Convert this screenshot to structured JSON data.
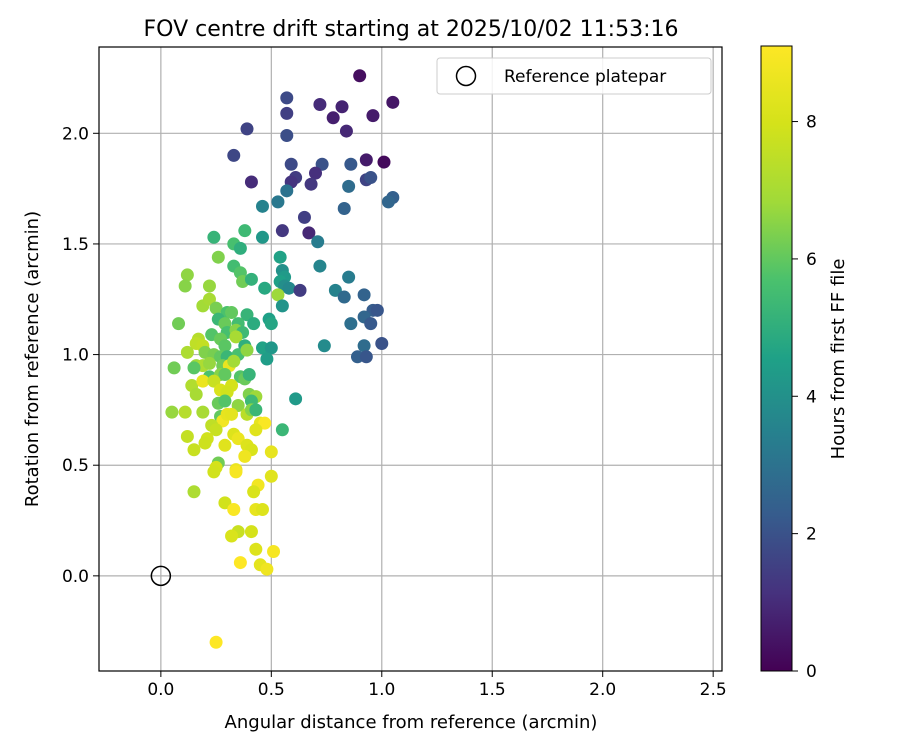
{
  "chart_data": {
    "type": "scatter",
    "title": "FOV centre drift starting at 2025/10/02 11:53:16",
    "xlabel": "Angular distance from reference (arcmin)",
    "ylabel": "Rotation from reference (arcmin)",
    "xlim": [
      -0.28,
      2.54
    ],
    "ylim": [
      -0.43,
      2.39
    ],
    "xticks": [
      0.0,
      0.5,
      1.0,
      1.5,
      2.0,
      2.5
    ],
    "yticks": [
      0.0,
      0.5,
      1.0,
      1.5,
      2.0
    ],
    "xtick_labels": [
      "0.0",
      "0.5",
      "1.0",
      "1.5",
      "2.0",
      "2.5"
    ],
    "ytick_labels": [
      "0.0",
      "0.5",
      "1.0",
      "1.5",
      "2.0"
    ],
    "grid": true,
    "colormap": "viridis",
    "colorbar": {
      "label": "Hours from first FF file",
      "range": [
        0,
        9.1
      ],
      "ticks": [
        0,
        2,
        4,
        6,
        8
      ],
      "tick_labels": [
        "0",
        "2",
        "4",
        "6",
        "8"
      ]
    },
    "legend": {
      "position": "top-right",
      "entries": [
        "Reference platepar"
      ]
    },
    "reference_point": {
      "x": 0.0,
      "y": 0.0,
      "marker": "open-circle",
      "color": "#000000"
    },
    "points": [
      [
        0.9,
        2.26,
        0.3
      ],
      [
        1.05,
        2.14,
        0.5
      ],
      [
        0.57,
        2.16,
        1.8
      ],
      [
        0.72,
        2.13,
        1.0
      ],
      [
        0.82,
        2.12,
        0.8
      ],
      [
        0.57,
        2.09,
        1.5
      ],
      [
        0.78,
        2.07,
        0.7
      ],
      [
        0.96,
        2.08,
        0.6
      ],
      [
        0.39,
        2.02,
        1.6
      ],
      [
        0.57,
        1.99,
        1.9
      ],
      [
        0.84,
        2.01,
        0.9
      ],
      [
        0.33,
        1.9,
        1.7
      ],
      [
        0.59,
        1.86,
        1.8
      ],
      [
        0.73,
        1.86,
        2.0
      ],
      [
        0.86,
        1.86,
        2.2
      ],
      [
        0.93,
        1.88,
        0.6
      ],
      [
        1.01,
        1.87,
        0.2
      ],
      [
        0.7,
        1.82,
        1.1
      ],
      [
        0.61,
        1.8,
        1.4
      ],
      [
        0.59,
        1.78,
        1.2
      ],
      [
        0.41,
        1.78,
        1.0
      ],
      [
        0.68,
        1.77,
        1.3
      ],
      [
        0.93,
        1.79,
        1.6
      ],
      [
        0.95,
        1.8,
        2.0
      ],
      [
        0.57,
        1.74,
        3.0
      ],
      [
        0.85,
        1.76,
        2.8
      ],
      [
        1.05,
        1.71,
        2.4
      ],
      [
        1.03,
        1.69,
        2.6
      ],
      [
        0.46,
        1.67,
        3.5
      ],
      [
        0.53,
        1.69,
        3.2
      ],
      [
        0.83,
        1.66,
        2.5
      ],
      [
        0.65,
        1.62,
        1.5
      ],
      [
        0.55,
        1.56,
        1.3
      ],
      [
        0.67,
        1.55,
        0.9
      ],
      [
        0.71,
        1.51,
        3.3
      ],
      [
        0.24,
        1.53,
        5.2
      ],
      [
        0.38,
        1.56,
        5.4
      ],
      [
        0.46,
        1.53,
        4.2
      ],
      [
        0.33,
        1.5,
        5.6
      ],
      [
        0.36,
        1.48,
        5.0
      ],
      [
        0.26,
        1.44,
        6.4
      ],
      [
        0.54,
        1.44,
        4.6
      ],
      [
        0.72,
        1.4,
        3.6
      ],
      [
        0.33,
        1.4,
        5.5
      ],
      [
        0.36,
        1.37,
        5.8
      ],
      [
        0.55,
        1.38,
        4.0
      ],
      [
        0.56,
        1.35,
        4.3
      ],
      [
        0.54,
        1.33,
        4.5
      ],
      [
        0.12,
        1.36,
        6.6
      ],
      [
        0.37,
        1.33,
        6.2
      ],
      [
        0.41,
        1.34,
        5.1
      ],
      [
        0.56,
        1.31,
        3.9
      ],
      [
        0.58,
        1.3,
        3.7
      ],
      [
        0.63,
        1.29,
        1.4
      ],
      [
        0.79,
        1.29,
        3.5
      ],
      [
        0.85,
        1.35,
        3.3
      ],
      [
        0.11,
        1.31,
        6.5
      ],
      [
        0.22,
        1.31,
        6.7
      ],
      [
        0.47,
        1.3,
        4.8
      ],
      [
        0.53,
        1.27,
        6.8
      ],
      [
        0.83,
        1.26,
        2.7
      ],
      [
        0.92,
        1.27,
        2.5
      ],
      [
        0.19,
        1.22,
        6.9
      ],
      [
        0.22,
        1.25,
        7.0
      ],
      [
        0.25,
        1.21,
        6.3
      ],
      [
        0.3,
        1.19,
        5.7
      ],
      [
        0.32,
        1.19,
        6.0
      ],
      [
        0.39,
        1.18,
        5.2
      ],
      [
        0.49,
        1.16,
        4.5
      ],
      [
        0.55,
        1.22,
        4.1
      ],
      [
        0.96,
        1.2,
        2.3
      ],
      [
        0.98,
        1.2,
        2.1
      ],
      [
        0.26,
        1.16,
        5.3
      ],
      [
        0.29,
        1.14,
        6.1
      ],
      [
        0.35,
        1.14,
        5.5
      ],
      [
        0.42,
        1.14,
        4.9
      ],
      [
        0.5,
        1.14,
        4.7
      ],
      [
        0.08,
        1.14,
        6.2
      ],
      [
        0.86,
        1.14,
        2.9
      ],
      [
        0.92,
        1.17,
        2.6
      ],
      [
        0.95,
        1.14,
        2.2
      ],
      [
        0.3,
        1.1,
        5.6
      ],
      [
        0.34,
        1.11,
        6.5
      ],
      [
        0.37,
        1.1,
        5.4
      ],
      [
        0.23,
        1.09,
        5.8
      ],
      [
        0.27,
        1.07,
        6.1
      ],
      [
        0.34,
        1.08,
        7.0
      ],
      [
        0.17,
        1.07,
        7.3
      ],
      [
        0.16,
        1.05,
        7.5
      ],
      [
        0.19,
        1.04,
        7.6
      ],
      [
        0.29,
        1.04,
        5.9
      ],
      [
        0.38,
        1.04,
        5.0
      ],
      [
        0.46,
        1.03,
        4.6
      ],
      [
        0.5,
        1.03,
        4.2
      ],
      [
        0.74,
        1.04,
        3.8
      ],
      [
        0.92,
        1.04,
        2.8
      ],
      [
        1.0,
        1.05,
        2.0
      ],
      [
        0.12,
        1.01,
        7.1
      ],
      [
        0.2,
        1.01,
        6.4
      ],
      [
        0.24,
        1.0,
        6.3
      ],
      [
        0.27,
        0.99,
        6.0
      ],
      [
        0.3,
        0.99,
        5.3
      ],
      [
        0.35,
        1.0,
        5.6
      ],
      [
        0.39,
        1.02,
        6.6
      ],
      [
        0.48,
        0.98,
        4.4
      ],
      [
        0.89,
        0.99,
        2.4
      ],
      [
        0.93,
        0.99,
        2.1
      ],
      [
        0.16,
        0.95,
        6.8
      ],
      [
        0.19,
        0.95,
        7.1
      ],
      [
        0.22,
        0.96,
        6.7
      ],
      [
        0.28,
        0.95,
        6.2
      ],
      [
        0.31,
        0.95,
        8.6
      ],
      [
        0.33,
        0.97,
        6.9
      ],
      [
        0.06,
        0.94,
        6.2
      ],
      [
        0.15,
        0.94,
        5.9
      ],
      [
        0.22,
        0.9,
        5.7
      ],
      [
        0.27,
        0.91,
        6.5
      ],
      [
        0.29,
        0.91,
        6.0
      ],
      [
        0.36,
        0.9,
        5.8
      ],
      [
        0.38,
        0.89,
        6.1
      ],
      [
        0.4,
        0.91,
        5.2
      ],
      [
        0.14,
        0.86,
        7.2
      ],
      [
        0.19,
        0.88,
        8.6
      ],
      [
        0.24,
        0.88,
        7.7
      ],
      [
        0.32,
        0.86,
        8.0
      ],
      [
        0.27,
        0.84,
        8.1
      ],
      [
        0.16,
        0.82,
        7.0
      ],
      [
        0.3,
        0.83,
        7.9
      ],
      [
        0.4,
        0.82,
        6.4
      ],
      [
        0.43,
        0.81,
        6.8
      ],
      [
        0.41,
        0.79,
        5.4
      ],
      [
        0.61,
        0.8,
        4.3
      ],
      [
        0.26,
        0.78,
        6.1
      ],
      [
        0.29,
        0.79,
        5.8
      ],
      [
        0.35,
        0.77,
        6.6
      ],
      [
        0.05,
        0.74,
        6.7
      ],
      [
        0.11,
        0.74,
        7.3
      ],
      [
        0.19,
        0.74,
        7.0
      ],
      [
        0.27,
        0.72,
        6.0
      ],
      [
        0.28,
        0.7,
        8.8
      ],
      [
        0.3,
        0.73,
        8.5
      ],
      [
        0.32,
        0.73,
        8.4
      ],
      [
        0.39,
        0.73,
        7.4
      ],
      [
        0.41,
        0.75,
        6.5
      ],
      [
        0.43,
        0.75,
        5.3
      ],
      [
        0.23,
        0.68,
        7.5
      ],
      [
        0.45,
        0.69,
        8.5
      ],
      [
        0.47,
        0.69,
        9.0
      ],
      [
        0.43,
        0.66,
        8.3
      ],
      [
        0.55,
        0.66,
        5.3
      ],
      [
        0.25,
        0.66,
        7.7
      ],
      [
        0.33,
        0.64,
        8.2
      ],
      [
        0.12,
        0.63,
        7.6
      ],
      [
        0.21,
        0.62,
        7.9
      ],
      [
        0.35,
        0.62,
        8.6
      ],
      [
        0.2,
        0.6,
        7.8
      ],
      [
        0.29,
        0.59,
        8.3
      ],
      [
        0.39,
        0.59,
        8.2
      ],
      [
        0.41,
        0.57,
        8.1
      ],
      [
        0.15,
        0.57,
        7.7
      ],
      [
        0.5,
        0.56,
        8.5
      ],
      [
        0.38,
        0.54,
        8.7
      ],
      [
        0.26,
        0.51,
        6.2
      ],
      [
        0.25,
        0.49,
        8.0
      ],
      [
        0.34,
        0.48,
        8.6
      ],
      [
        0.34,
        0.47,
        8.9
      ],
      [
        0.24,
        0.47,
        7.9
      ],
      [
        0.5,
        0.45,
        8.3
      ],
      [
        0.15,
        0.38,
        7.1
      ],
      [
        0.44,
        0.41,
        8.8
      ],
      [
        0.42,
        0.38,
        8.1
      ],
      [
        0.29,
        0.33,
        7.9
      ],
      [
        0.33,
        0.3,
        9.0
      ],
      [
        0.43,
        0.3,
        8.5
      ],
      [
        0.46,
        0.3,
        8.2
      ],
      [
        0.35,
        0.2,
        7.7
      ],
      [
        0.41,
        0.2,
        8.0
      ],
      [
        0.32,
        0.18,
        8.1
      ],
      [
        0.43,
        0.12,
        8.2
      ],
      [
        0.51,
        0.11,
        8.9
      ],
      [
        0.36,
        0.06,
        9.1
      ],
      [
        0.45,
        0.05,
        8.4
      ],
      [
        0.48,
        0.03,
        8.7
      ],
      [
        0.25,
        -0.3,
        9.1
      ]
    ]
  }
}
